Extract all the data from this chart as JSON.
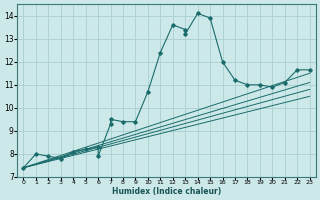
{
  "xlabel": "Humidex (Indice chaleur)",
  "ylabel": "",
  "bg_color": "#cce8e8",
  "grid_color": "#aacfcf",
  "line_color": "#1a6b6b",
  "xlim": [
    -0.5,
    23.5
  ],
  "ylim": [
    7,
    14.5
  ],
  "xticks": [
    0,
    1,
    2,
    3,
    4,
    5,
    6,
    7,
    8,
    9,
    10,
    11,
    12,
    13,
    14,
    15,
    16,
    17,
    18,
    19,
    20,
    21,
    22,
    23
  ],
  "yticks": [
    7,
    8,
    9,
    10,
    11,
    12,
    13,
    14
  ],
  "series": [
    [
      0,
      7.4
    ],
    [
      1,
      8.0
    ],
    [
      2,
      7.9
    ],
    [
      3,
      7.8
    ],
    [
      4,
      8.1
    ],
    [
      5,
      8.2
    ],
    [
      6,
      8.3
    ],
    [
      6,
      7.9
    ],
    [
      7,
      9.3
    ],
    [
      7,
      9.5
    ],
    [
      8,
      9.4
    ],
    [
      9,
      9.4
    ],
    [
      10,
      10.7
    ],
    [
      11,
      12.4
    ],
    [
      12,
      13.6
    ],
    [
      13,
      13.4
    ],
    [
      13,
      13.2
    ],
    [
      14,
      14.1
    ],
    [
      15,
      13.9
    ],
    [
      16,
      12.0
    ],
    [
      17,
      11.2
    ],
    [
      18,
      11.0
    ],
    [
      19,
      11.0
    ],
    [
      20,
      10.9
    ],
    [
      21,
      11.1
    ],
    [
      22,
      11.65
    ],
    [
      23,
      11.65
    ]
  ],
  "linear_lines": [
    {
      "x": [
        0,
        23
      ],
      "y": [
        7.4,
        11.5
      ]
    },
    {
      "x": [
        0,
        23
      ],
      "y": [
        7.4,
        11.1
      ]
    },
    {
      "x": [
        0,
        23
      ],
      "y": [
        7.4,
        10.8
      ]
    },
    {
      "x": [
        0,
        23
      ],
      "y": [
        7.4,
        10.5
      ]
    }
  ]
}
